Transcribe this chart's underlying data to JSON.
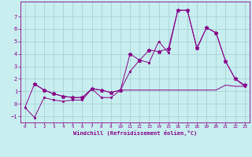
{
  "xlabel": "Windchill (Refroidissement éolien,°C)",
  "bg_color": "#c8eef0",
  "grid_color": "#9ecece",
  "line_color": "#880088",
  "xlim": [
    -0.5,
    23.5
  ],
  "ylim": [
    -1.5,
    8.2
  ],
  "xticks": [
    0,
    1,
    2,
    3,
    4,
    5,
    6,
    7,
    8,
    9,
    10,
    11,
    12,
    13,
    14,
    15,
    16,
    17,
    18,
    19,
    20,
    21,
    22,
    23
  ],
  "yticks": [
    -1,
    0,
    1,
    2,
    3,
    4,
    5,
    6,
    7
  ],
  "series1_x": [
    0,
    1,
    2,
    3,
    4,
    5,
    6,
    7,
    8,
    9,
    10,
    11,
    12,
    13,
    14,
    15,
    16,
    17,
    18,
    19,
    20,
    21,
    22,
    23
  ],
  "series1_y": [
    -0.3,
    1.6,
    1.1,
    0.8,
    0.6,
    0.5,
    0.5,
    1.2,
    1.1,
    0.9,
    1.1,
    1.1,
    1.1,
    1.1,
    1.1,
    1.1,
    1.1,
    1.1,
    1.1,
    1.1,
    1.1,
    1.5,
    1.4,
    1.4
  ],
  "series2_x": [
    0,
    1,
    2,
    3,
    4,
    5,
    6,
    7,
    8,
    9,
    10,
    11,
    12,
    13,
    14,
    15,
    16,
    17,
    18,
    19,
    20,
    21,
    22,
    23
  ],
  "series2_y": [
    -0.3,
    -1.1,
    0.5,
    0.3,
    0.2,
    0.3,
    0.3,
    1.2,
    0.5,
    0.5,
    1.1,
    2.6,
    3.5,
    3.3,
    5.0,
    4.1,
    7.5,
    7.5,
    4.4,
    6.1,
    5.7,
    3.4,
    2.0,
    1.4
  ],
  "series3_x": [
    1,
    2,
    3,
    4,
    5,
    6,
    7,
    8,
    9,
    10,
    11,
    12,
    13,
    14,
    15,
    16,
    17,
    18,
    19,
    20,
    21,
    22,
    23
  ],
  "series3_y": [
    1.6,
    1.1,
    0.8,
    0.6,
    0.5,
    0.5,
    1.2,
    1.1,
    0.9,
    1.1,
    4.0,
    3.5,
    4.3,
    4.2,
    4.4,
    7.5,
    7.5,
    4.5,
    6.1,
    5.7,
    3.4,
    2.0,
    1.5
  ]
}
